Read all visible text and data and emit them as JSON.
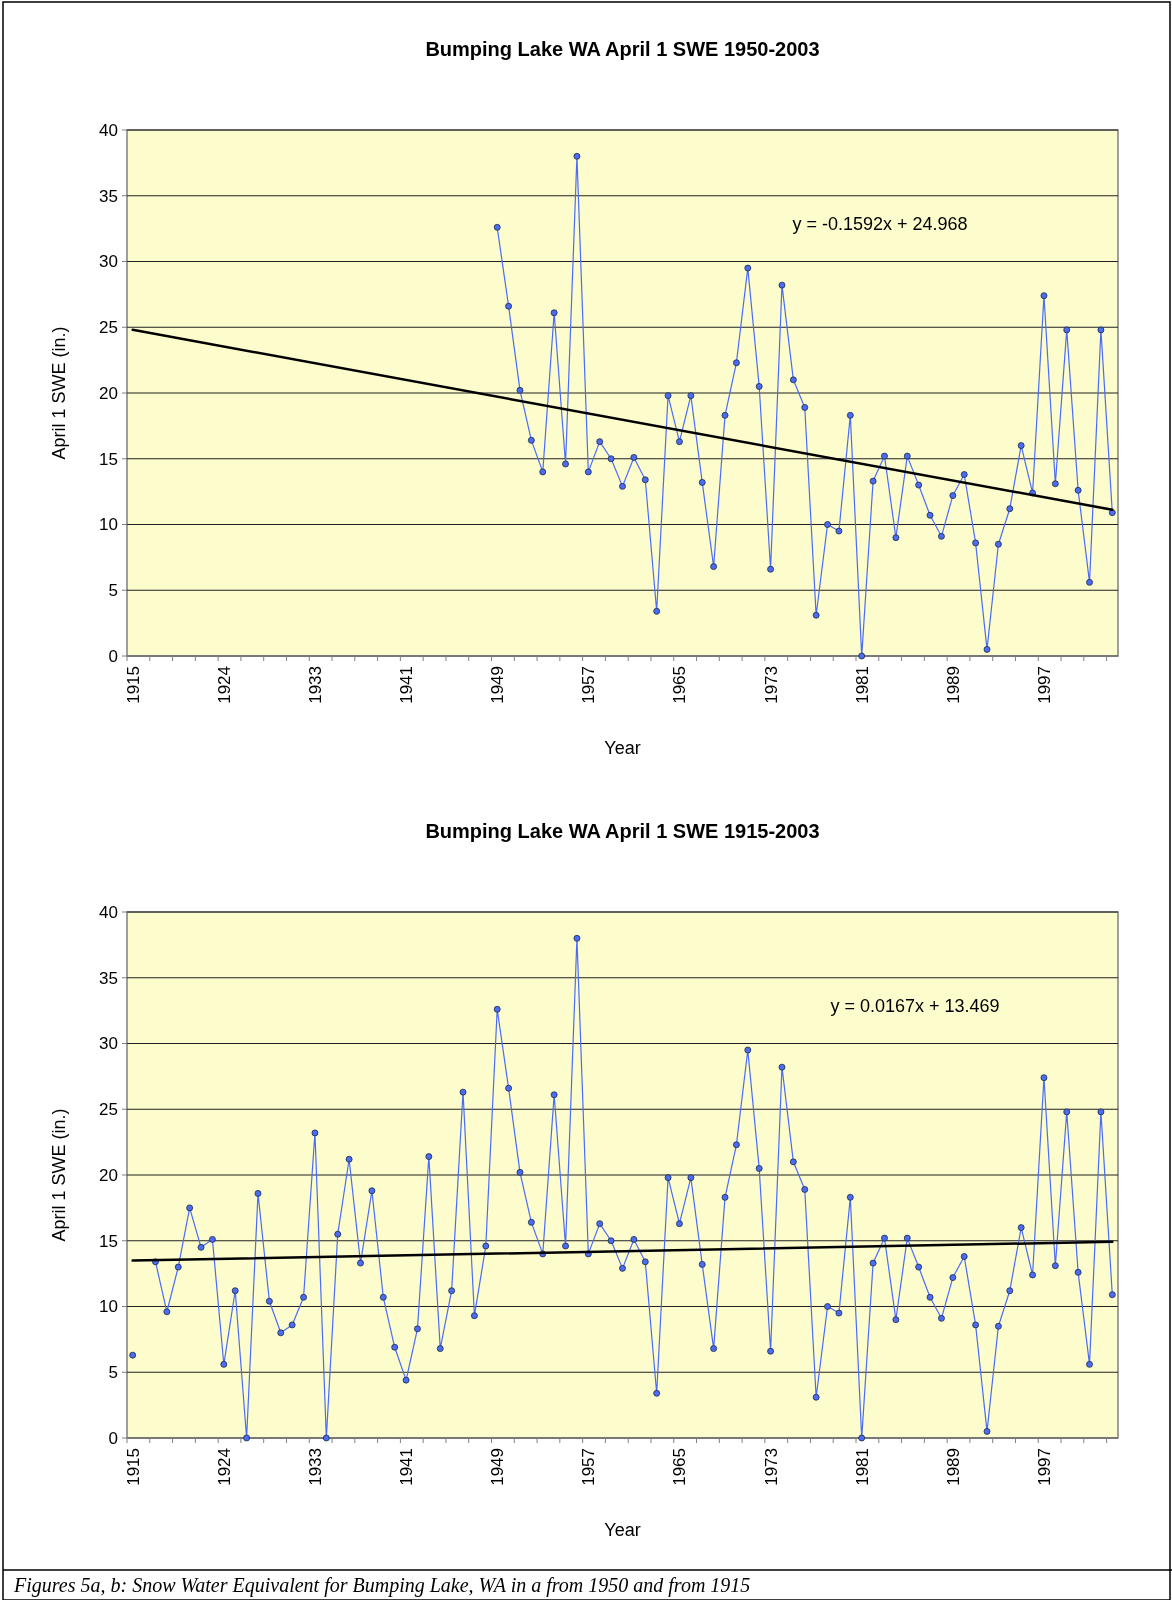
{
  "chart_data": [
    {
      "type": "line",
      "title": "Bumping Lake WA April 1 SWE 1950-2003",
      "xlabel": "Year",
      "ylabel": "April 1 SWE (in.)",
      "categories": [
        "1915",
        null,
        null,
        null,
        null,
        null,
        null,
        null,
        "1924",
        null,
        null,
        null,
        null,
        null,
        null,
        null,
        "1933",
        null,
        null,
        null,
        null,
        null,
        null,
        null,
        "1941",
        null,
        null,
        null,
        null,
        null,
        null,
        null,
        "1949",
        null,
        null,
        null,
        null,
        null,
        null,
        null,
        "1957",
        null,
        null,
        null,
        null,
        null,
        null,
        null,
        "1965",
        null,
        null,
        null,
        null,
        null,
        null,
        null,
        "1973",
        null,
        null,
        null,
        null,
        null,
        null,
        null,
        "1981",
        null,
        null,
        null,
        null,
        null,
        null,
        null,
        "1989",
        null,
        null,
        null,
        null,
        null,
        null,
        null,
        "1997",
        null,
        null,
        null,
        null,
        null,
        null
      ],
      "series": [
        {
          "color": "#4a6cf7",
          "marker": "circle",
          "values": [
            null,
            null,
            null,
            null,
            null,
            null,
            null,
            null,
            null,
            null,
            null,
            null,
            null,
            null,
            null,
            null,
            null,
            null,
            null,
            null,
            null,
            null,
            null,
            null,
            null,
            null,
            null,
            null,
            null,
            null,
            null,
            null,
            32.6,
            26.6,
            20.2,
            16.4,
            14.0,
            26.1,
            14.6,
            38.0,
            14.0,
            16.3,
            15.0,
            12.9,
            15.1,
            13.4,
            3.4,
            19.8,
            16.3,
            19.8,
            13.2,
            6.8,
            18.3,
            22.3,
            29.5,
            20.5,
            6.6,
            28.2,
            21.0,
            18.9,
            3.1,
            10.0,
            9.5,
            18.3,
            0,
            13.3,
            15.2,
            9.0,
            15.2,
            13.0,
            10.7,
            9.1,
            12.2,
            13.8,
            8.6,
            0.5,
            8.5,
            11.2,
            16.0,
            12.4,
            27.4,
            13.1,
            24.8,
            12.6,
            5.6,
            24.8,
            10.9
          ]
        },
        {
          "color": "#000000",
          "marker": "none",
          "values": [
            24.81,
            null,
            null,
            null,
            null,
            null,
            null,
            null,
            null,
            null,
            null,
            null,
            null,
            null,
            null,
            null,
            null,
            null,
            null,
            null,
            null,
            null,
            null,
            null,
            null,
            null,
            null,
            null,
            null,
            null,
            null,
            null,
            null,
            null,
            null,
            null,
            null,
            null,
            null,
            null,
            null,
            null,
            null,
            null,
            null,
            null,
            null,
            null,
            null,
            null,
            null,
            null,
            null,
            null,
            null,
            null,
            null,
            null,
            null,
            null,
            null,
            null,
            null,
            null,
            null,
            null,
            null,
            null,
            null,
            null,
            null,
            null,
            null,
            null,
            null,
            null,
            null,
            null,
            null,
            null,
            null,
            null,
            null,
            null,
            null,
            null,
            11.12
          ]
        }
      ],
      "ylim": [
        0,
        40
      ],
      "yticks": [
        0,
        5,
        10,
        15,
        20,
        25,
        30,
        35,
        40
      ],
      "grid": "y",
      "annotations": [
        "y = -0.1592x + 24.968"
      ]
    },
    {
      "type": "line",
      "title": "Bumping Lake WA April 1 SWE 1915-2003",
      "xlabel": "Year",
      "ylabel": "April 1 SWE (in.)",
      "categories": [
        "1915",
        null,
        null,
        null,
        null,
        null,
        null,
        null,
        "1924",
        null,
        null,
        null,
        null,
        null,
        null,
        null,
        "1933",
        null,
        null,
        null,
        null,
        null,
        null,
        null,
        "1941",
        null,
        null,
        null,
        null,
        null,
        null,
        null,
        "1949",
        null,
        null,
        null,
        null,
        null,
        null,
        null,
        "1957",
        null,
        null,
        null,
        null,
        null,
        null,
        null,
        "1965",
        null,
        null,
        null,
        null,
        null,
        null,
        null,
        "1973",
        null,
        null,
        null,
        null,
        null,
        null,
        null,
        "1981",
        null,
        null,
        null,
        null,
        null,
        null,
        null,
        "1989",
        null,
        null,
        null,
        null,
        null,
        null,
        null,
        "1997",
        null,
        null,
        null,
        null,
        null,
        null
      ],
      "series": [
        {
          "color": "#4a6cf7",
          "marker": "circle",
          "values": [
            6.3,
            null,
            13.4,
            9.6,
            13.0,
            17.5,
            14.5,
            15.1,
            5.6,
            11.2,
            0,
            18.6,
            10.4,
            8.0,
            8.6,
            10.7,
            23.2,
            0,
            15.5,
            21.2,
            13.3,
            18.8,
            10.7,
            6.9,
            4.4,
            8.3,
            21.4,
            6.8,
            11.2,
            26.3,
            9.3,
            14.6,
            32.6,
            26.6,
            20.2,
            16.4,
            14.0,
            26.1,
            14.6,
            38.0,
            14.0,
            16.3,
            15.0,
            12.9,
            15.1,
            13.4,
            3.4,
            19.8,
            16.3,
            19.8,
            13.2,
            6.8,
            18.3,
            22.3,
            29.5,
            20.5,
            6.6,
            28.2,
            21.0,
            18.9,
            3.1,
            10.0,
            9.5,
            18.3,
            0,
            13.3,
            15.2,
            9.0,
            15.2,
            13.0,
            10.7,
            9.1,
            12.2,
            13.8,
            8.6,
            0.5,
            8.5,
            11.2,
            16.0,
            12.4,
            27.4,
            13.1,
            24.8,
            12.6,
            5.6,
            24.8,
            10.9
          ]
        },
        {
          "color": "#000000",
          "marker": "none",
          "values": [
            13.49,
            null,
            null,
            null,
            null,
            null,
            null,
            null,
            null,
            null,
            null,
            null,
            null,
            null,
            null,
            null,
            null,
            null,
            null,
            null,
            null,
            null,
            null,
            null,
            null,
            null,
            null,
            null,
            null,
            null,
            null,
            null,
            null,
            null,
            null,
            null,
            null,
            null,
            null,
            null,
            null,
            null,
            null,
            null,
            null,
            null,
            null,
            null,
            null,
            null,
            null,
            null,
            null,
            null,
            null,
            null,
            null,
            null,
            null,
            null,
            null,
            null,
            null,
            null,
            null,
            null,
            null,
            null,
            null,
            null,
            null,
            null,
            null,
            null,
            null,
            null,
            null,
            null,
            null,
            null,
            null,
            null,
            null,
            null,
            null,
            null,
            14.92
          ]
        }
      ],
      "ylim": [
        0,
        40
      ],
      "yticks": [
        0,
        5,
        10,
        15,
        20,
        25,
        30,
        35,
        40
      ],
      "grid": "y",
      "annotations": [
        "y = 0.0167x + 13.469",
        "Figures 5a, b: Snow Water Equivalent for Bumping Lake, WA in a from 1950 and from 1915"
      ]
    }
  ]
}
